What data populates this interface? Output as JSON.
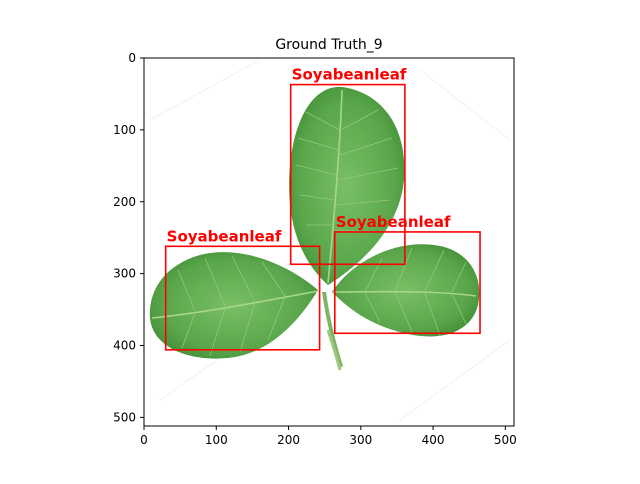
{
  "figure": {
    "title": "Ground Truth_9"
  },
  "axes": {
    "x_ticks": [
      0,
      100,
      200,
      300,
      400,
      500
    ],
    "y_ticks": [
      0,
      100,
      200,
      300,
      400,
      500
    ],
    "xlim": [
      0,
      512
    ],
    "ylim": [
      512,
      0
    ]
  },
  "image": {
    "subject": "soybean trifoliate leaf on white background"
  },
  "boxes": [
    {
      "label": "Soyabeanleaf",
      "x1": 203,
      "y1": 37,
      "x2": 361,
      "y2": 287
    },
    {
      "label": "Soyabeanleaf",
      "x1": 30,
      "y1": 262,
      "x2": 243,
      "y2": 406
    },
    {
      "label": "Soyabeanleaf",
      "x1": 264,
      "y1": 242,
      "x2": 465,
      "y2": 383
    }
  ],
  "colors": {
    "box": "#ff0000",
    "label": "#ff0000",
    "leaf_dark": "#3f8a34",
    "leaf_light": "#7cc26b"
  }
}
